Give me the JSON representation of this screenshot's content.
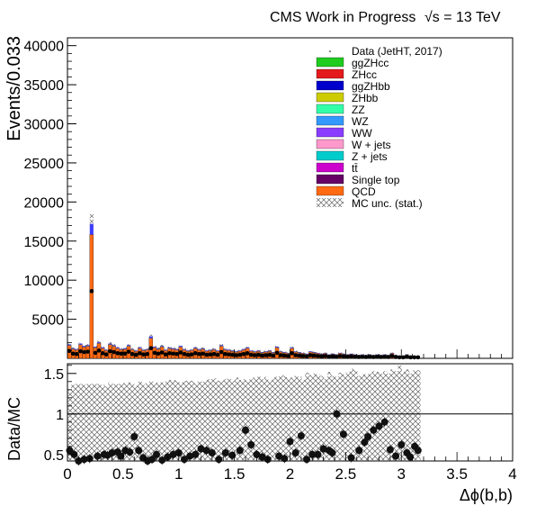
{
  "header": {
    "left": "CMS Work in Progress",
    "right": "√s = 13 TeV"
  },
  "legend": [
    {
      "label": "Data (JetHT, 2017)",
      "color": "#000000",
      "kind": "dot"
    },
    {
      "label": "ggZHcc",
      "color": "#1fcc1f",
      "kind": "box"
    },
    {
      "label": "ZHcc",
      "color": "#e41a1c",
      "kind": "box"
    },
    {
      "label": "ggZHbb",
      "color": "#0000cc",
      "kind": "box"
    },
    {
      "label": "ZHbb",
      "color": "#cccc00",
      "kind": "box"
    },
    {
      "label": "ZZ",
      "color": "#33ffa8",
      "kind": "box"
    },
    {
      "label": "WZ",
      "color": "#3399ff",
      "kind": "box"
    },
    {
      "label": "WW",
      "color": "#8a3dff",
      "kind": "box"
    },
    {
      "label": "W + jets",
      "color": "#ff99cc",
      "kind": "box"
    },
    {
      "label": "Z + jets",
      "color": "#00cccc",
      "kind": "box"
    },
    {
      "label": "tt̄",
      "color": "#cc00cc",
      "kind": "box"
    },
    {
      "label": "Single top",
      "color": "#660066",
      "kind": "box"
    },
    {
      "label": "QCD",
      "color": "#ff6a13",
      "kind": "box"
    },
    {
      "label": "MC unc. (stat.)",
      "color": "#555555",
      "kind": "hatch"
    }
  ],
  "chart_data": [
    {
      "type": "bar",
      "stacked": true,
      "ylabel": "Events/0.033",
      "xlim": [
        0,
        4
      ],
      "ylim": [
        0,
        41000
      ],
      "yticks": [
        5000,
        10000,
        15000,
        20000,
        25000,
        30000,
        35000,
        40000
      ],
      "grid": false,
      "legend_position": "top-right",
      "bin_width": 0.033,
      "mc_total": {
        "x": [
          0.017,
          0.05,
          0.083,
          0.117,
          0.15,
          0.183,
          0.217,
          0.25,
          0.283,
          0.317,
          0.35,
          0.383,
          0.417,
          0.45,
          0.483,
          0.517,
          0.55,
          0.583,
          0.617,
          0.65,
          0.683,
          0.717,
          0.75,
          0.783,
          0.817,
          0.85,
          0.883,
          0.917,
          0.95,
          0.983,
          1.017,
          1.05,
          1.083,
          1.117,
          1.15,
          1.183,
          1.217,
          1.25,
          1.283,
          1.317,
          1.35,
          1.383,
          1.417,
          1.45,
          1.483,
          1.517,
          1.55,
          1.583,
          1.617,
          1.65,
          1.683,
          1.717,
          1.75,
          1.783,
          1.817,
          1.85,
          1.883,
          1.917,
          1.95,
          1.983,
          2.017,
          2.05,
          2.083,
          2.117,
          2.15,
          2.183,
          2.217,
          2.25,
          2.283,
          2.317,
          2.35,
          2.383,
          2.417,
          2.45,
          2.483,
          2.517,
          2.55,
          2.583,
          2.617,
          2.65,
          2.683,
          2.717,
          2.75,
          2.783,
          2.817,
          2.85,
          2.883,
          2.917,
          2.95,
          2.983,
          3.017,
          3.05,
          3.083,
          3.117,
          3.15
        ],
        "y": [
          1800,
          1300,
          1200,
          1900,
          1600,
          1700,
          17200,
          1500,
          2100,
          1400,
          1100,
          1900,
          1700,
          1400,
          1200,
          1300,
          1700,
          1200,
          1000,
          1400,
          1100,
          1200,
          2800,
          1500,
          1300,
          1600,
          1100,
          1400,
          1300,
          1200,
          1600,
          1200,
          1000,
          1100,
          1400,
          1200,
          1300,
          1000,
          1100,
          1200,
          1000,
          1700,
          1200,
          1100,
          1000,
          900,
          1000,
          1200,
          1400,
          1000,
          900,
          1000,
          800,
          900,
          1000,
          800,
          1500,
          900,
          800,
          700,
          1400,
          900,
          800,
          700,
          600,
          900,
          800,
          700,
          600,
          700,
          500,
          600,
          500,
          700,
          600,
          500,
          600,
          500,
          400,
          500,
          400,
          500,
          400,
          500,
          400,
          500,
          400,
          700,
          400,
          300,
          300,
          500,
          300,
          300,
          300
        ]
      },
      "data_points": {
        "x": [
          0.017,
          0.05,
          0.083,
          0.117,
          0.15,
          0.183,
          0.217,
          0.25,
          0.283,
          0.317,
          0.35,
          0.383,
          0.417,
          0.45,
          0.483,
          0.517,
          0.55,
          0.583,
          0.617,
          0.65,
          0.683,
          0.717,
          0.75,
          0.783,
          0.817,
          0.85,
          0.883,
          0.917,
          0.95,
          0.983,
          1.017,
          1.05,
          1.083,
          1.117,
          1.15,
          1.183,
          1.217,
          1.25,
          1.283,
          1.317,
          1.35,
          1.383,
          1.417,
          1.45,
          1.483,
          1.517,
          1.55,
          1.583,
          1.617,
          1.65,
          1.683,
          1.717,
          1.75,
          1.783,
          1.817,
          1.85,
          1.883,
          1.917,
          1.95,
          1.983,
          2.017,
          2.05,
          2.083,
          2.117,
          2.15,
          2.183,
          2.217,
          2.25,
          2.283,
          2.317,
          2.35,
          2.383,
          2.417,
          2.45,
          2.483,
          2.517,
          2.55,
          2.583,
          2.617,
          2.65,
          2.683,
          2.717,
          2.75,
          2.783,
          2.817,
          2.85,
          2.883,
          2.917,
          2.95,
          2.983,
          3.017,
          3.05,
          3.083,
          3.117,
          3.15
        ],
        "y": [
          950,
          600,
          550,
          900,
          800,
          850,
          8600,
          700,
          1000,
          650,
          500,
          900,
          800,
          650,
          600,
          600,
          850,
          550,
          450,
          650,
          500,
          550,
          1300,
          700,
          600,
          750,
          500,
          650,
          600,
          550,
          750,
          550,
          450,
          500,
          650,
          550,
          600,
          450,
          500,
          550,
          450,
          800,
          550,
          500,
          450,
          400,
          450,
          550,
          650,
          450,
          400,
          450,
          350,
          400,
          450,
          350,
          700,
          400,
          350,
          300,
          650,
          400,
          350,
          300,
          250,
          400,
          350,
          300,
          250,
          300,
          200,
          250,
          200,
          300,
          250,
          200,
          250,
          200,
          180,
          200,
          180,
          200,
          180,
          200,
          180,
          200,
          180,
          300,
          180,
          130,
          130,
          200,
          130,
          130,
          130
        ]
      }
    },
    {
      "type": "scatter",
      "xlabel": "Δϕ(b,b)",
      "ylabel": "Data/MC",
      "xlim": [
        0,
        4
      ],
      "ylim": [
        0.42,
        1.62
      ],
      "yticks": [
        0.5,
        1,
        1.5
      ],
      "xticks": [
        "0",
        "0.5",
        "1",
        "1.5",
        "2",
        "2.5",
        "3",
        "3.5",
        "4"
      ],
      "reference_line": 1,
      "mc_unc_band": {
        "x_start": 0,
        "x_end": 3.17,
        "low": [
          0.43,
          0.43,
          0.43,
          0.43,
          0.43,
          0.43,
          0.43,
          0.43,
          0.43,
          0.43,
          0.43,
          0.43,
          0.43,
          0.43,
          0.43,
          0.43,
          0.43,
          0.43,
          0.43,
          0.43,
          0.43,
          0.43,
          0.43,
          0.43,
          0.43,
          0.43,
          0.43,
          0.43,
          0.43,
          0.43,
          0.43,
          0.43,
          0.43,
          0.43,
          0.43,
          0.43,
          0.43,
          0.43,
          0.43,
          0.43,
          0.43,
          0.43,
          0.43,
          0.43,
          0.43,
          0.43,
          0.43,
          0.43,
          0.43,
          0.43,
          0.43,
          0.43,
          0.43,
          0.43,
          0.43,
          0.43,
          0.43,
          0.43,
          0.43,
          0.43,
          0.43,
          0.43,
          0.43,
          0.43,
          0.43,
          0.43,
          0.43,
          0.43,
          0.43,
          0.43,
          0.43,
          0.43,
          0.43,
          0.43,
          0.43,
          0.43,
          0.43,
          0.43,
          0.43,
          0.43,
          0.43,
          0.43,
          0.43,
          0.43,
          0.43,
          0.43,
          0.43,
          0.43,
          0.43,
          0.43,
          0.43,
          0.43,
          0.43,
          0.43,
          0.43
        ],
        "high": [
          1.3,
          1.36,
          1.37,
          1.37,
          1.36,
          1.37,
          1.37,
          1.37,
          1.37,
          1.36,
          1.34,
          1.39,
          1.37,
          1.37,
          1.38,
          1.38,
          1.39,
          1.37,
          1.35,
          1.4,
          1.36,
          1.38,
          1.41,
          1.38,
          1.39,
          1.39,
          1.4,
          1.42,
          1.42,
          1.41,
          1.39,
          1.41,
          1.41,
          1.41,
          1.38,
          1.4,
          1.4,
          1.42,
          1.43,
          1.44,
          1.41,
          1.41,
          1.43,
          1.44,
          1.41,
          1.45,
          1.42,
          1.43,
          1.41,
          1.43,
          1.45,
          1.46,
          1.43,
          1.46,
          1.41,
          1.45,
          1.46,
          1.48,
          1.47,
          1.44,
          1.45,
          1.47,
          1.46,
          1.42,
          1.51,
          1.48,
          1.5,
          1.49,
          1.47,
          1.43,
          1.52,
          1.47,
          1.46,
          1.51,
          1.49,
          1.52,
          1.56,
          1.54,
          1.47,
          1.49,
          1.49,
          1.5,
          1.53,
          1.52,
          1.5,
          1.53,
          1.5,
          1.55,
          1.53,
          1.6,
          1.52,
          1.55,
          1.5,
          1.54,
          1.54
        ]
      },
      "points": {
        "x": [
          0.02,
          0.06,
          0.1,
          0.15,
          0.2,
          0.27,
          0.33,
          0.36,
          0.4,
          0.45,
          0.48,
          0.52,
          0.56,
          0.6,
          0.64,
          0.68,
          0.72,
          0.76,
          0.8,
          0.85,
          0.9,
          0.95,
          1.0,
          1.05,
          1.1,
          1.15,
          1.2,
          1.25,
          1.3,
          1.36,
          1.42,
          1.48,
          1.55,
          1.6,
          1.65,
          1.7,
          1.75,
          1.8,
          1.9,
          1.95,
          2.0,
          2.05,
          2.1,
          2.15,
          2.2,
          2.25,
          2.3,
          2.35,
          2.38,
          2.42,
          2.48,
          2.55,
          2.62,
          2.67,
          2.7,
          2.75,
          2.8,
          2.85,
          2.9,
          2.95,
          3.0,
          3.05,
          3.08,
          3.12,
          3.15
        ],
        "y": [
          0.55,
          0.5,
          0.42,
          0.44,
          0.45,
          0.48,
          0.5,
          0.49,
          0.52,
          0.53,
          0.48,
          0.55,
          0.53,
          0.72,
          0.55,
          0.46,
          0.42,
          0.44,
          0.5,
          0.43,
          0.47,
          0.5,
          0.52,
          0.44,
          0.48,
          0.5,
          0.57,
          0.55,
          0.52,
          0.44,
          0.52,
          0.49,
          0.55,
          0.8,
          0.62,
          0.5,
          0.47,
          0.44,
          0.48,
          0.45,
          0.66,
          0.52,
          0.73,
          0.44,
          0.5,
          0.5,
          0.57,
          0.55,
          0.52,
          1.0,
          0.75,
          0.46,
          0.55,
          0.65,
          0.72,
          0.8,
          0.85,
          0.9,
          0.56,
          0.48,
          0.62,
          0.52,
          0.47,
          0.6,
          0.55
        ]
      }
    }
  ]
}
